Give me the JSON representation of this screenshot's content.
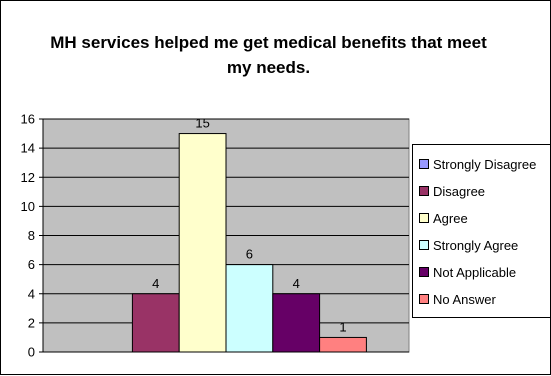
{
  "chart_data": {
    "type": "bar",
    "title": "MH services helped me get medical benefits that meet my needs.",
    "categories": [
      "Strongly Disagree",
      "Disagree",
      "Agree",
      "Strongly Agree",
      "Not Applicable",
      "No Answer"
    ],
    "values": [
      0,
      4,
      15,
      6,
      4,
      1
    ],
    "data_labels": [
      "",
      "4",
      "15",
      "6",
      "4",
      "1"
    ],
    "yticks": [
      "0",
      "2",
      "4",
      "6",
      "8",
      "10",
      "12",
      "14",
      "16"
    ],
    "ylim": [
      0,
      16
    ],
    "grid": true,
    "plot_background": "#c0c0c0",
    "legend_position": "right",
    "colors": [
      "#9999ff",
      "#993366",
      "#ffffcc",
      "#ccffff",
      "#660066",
      "#ff8080"
    ]
  },
  "legend": {
    "items": [
      "Strongly Disagree",
      "Disagree",
      "Agree",
      "Strongly Agree",
      "Not Applicable",
      "No Answer"
    ]
  }
}
